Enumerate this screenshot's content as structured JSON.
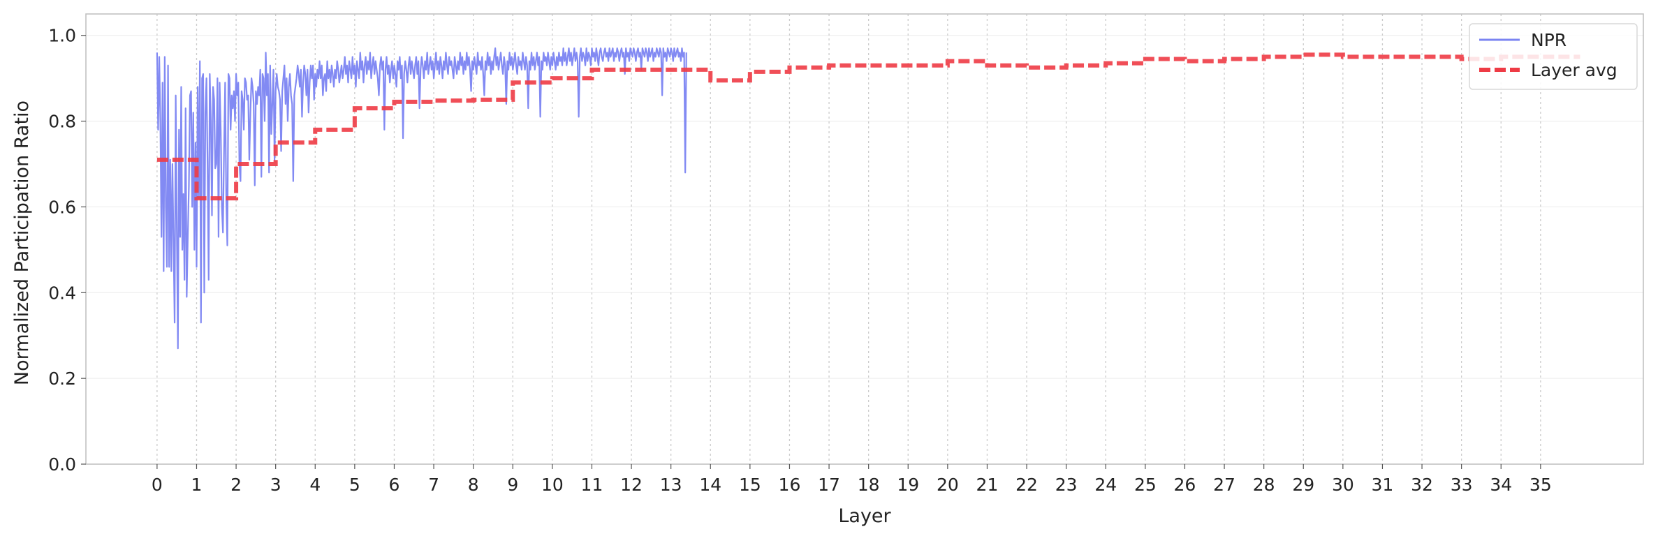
{
  "chart_data": {
    "type": "line",
    "xlabel": "Layer",
    "ylabel": "Normalized Participation Ratio",
    "xlim": [
      -1.8,
      37.6
    ],
    "ylim": [
      0.0,
      1.05
    ],
    "x_ticks": [
      "0",
      "1",
      "2",
      "3",
      "4",
      "5",
      "6",
      "7",
      "8",
      "9",
      "10",
      "11",
      "12",
      "13",
      "14",
      "15",
      "16",
      "17",
      "18",
      "19",
      "20",
      "21",
      "22",
      "23",
      "24",
      "25",
      "26",
      "27",
      "28",
      "29",
      "30",
      "31",
      "32",
      "33",
      "34",
      "35"
    ],
    "y_ticks": [
      "0.0",
      "0.2",
      "0.4",
      "0.6",
      "0.8",
      "1.0"
    ],
    "grid": {
      "vertical_dotted_at_layers": true,
      "horizontal": true
    },
    "legend_position": "top-right",
    "colors": {
      "npr": "#7b84f2",
      "layer_avg": "#ee3b45",
      "grid": "#cccccc",
      "axis": "#bdbdbd"
    },
    "series": [
      {
        "name": "NPR",
        "style": "solid-line",
        "x_step": 0.02778,
        "x_start": 0,
        "values": [
          0.96,
          0.78,
          0.95,
          0.8,
          0.53,
          0.89,
          0.45,
          0.95,
          0.6,
          0.46,
          0.93,
          0.46,
          0.71,
          0.45,
          0.7,
          0.52,
          0.33,
          0.86,
          0.55,
          0.27,
          0.78,
          0.53,
          0.88,
          0.5,
          0.63,
          0.43,
          0.83,
          0.39,
          0.53,
          0.65,
          0.86,
          0.87,
          0.6,
          0.82,
          0.5,
          0.75,
          0.46,
          0.88,
          0.62,
          0.94,
          0.33,
          0.9,
          0.91,
          0.4,
          0.82,
          0.9,
          0.7,
          0.43,
          0.91,
          0.8,
          0.58,
          0.88,
          0.85,
          0.69,
          0.7,
          0.9,
          0.53,
          0.89,
          0.78,
          0.6,
          0.54,
          0.73,
          0.89,
          0.62,
          0.51,
          0.91,
          0.9,
          0.78,
          0.86,
          0.83,
          0.87,
          0.8,
          0.91,
          0.86,
          0.89,
          0.7,
          0.66,
          0.87,
          0.85,
          0.78,
          0.9,
          0.89,
          0.85,
          0.86,
          0.71,
          0.82,
          0.9,
          0.88,
          0.84,
          0.65,
          0.87,
          0.84,
          0.88,
          0.86,
          0.92,
          0.67,
          0.91,
          0.9,
          0.8,
          0.96,
          0.86,
          0.91,
          0.68,
          0.93,
          0.77,
          0.84,
          0.92,
          0.71,
          0.87,
          0.91,
          0.88,
          0.87,
          0.85,
          0.73,
          0.87,
          0.9,
          0.93,
          0.84,
          0.9,
          0.8,
          0.88,
          0.91,
          0.86,
          0.84,
          0.66,
          0.86,
          0.88,
          0.9,
          0.93,
          0.91,
          0.88,
          0.92,
          0.81,
          0.89,
          0.93,
          0.91,
          0.86,
          0.92,
          0.82,
          0.89,
          0.93,
          0.9,
          0.93,
          0.85,
          0.91,
          0.88,
          0.92,
          0.9,
          0.94,
          0.9,
          0.93,
          0.86,
          0.9,
          0.91,
          0.87,
          0.94,
          0.9,
          0.92,
          0.89,
          0.93,
          0.91,
          0.88,
          0.92,
          0.9,
          0.94,
          0.92,
          0.89,
          0.91,
          0.93,
          0.9,
          0.92,
          0.95,
          0.91,
          0.93,
          0.89,
          0.94,
          0.92,
          0.9,
          0.95,
          0.91,
          0.93,
          0.88,
          0.94,
          0.92,
          0.9,
          0.96,
          0.92,
          0.94,
          0.89,
          0.93,
          0.95,
          0.91,
          0.94,
          0.92,
          0.96,
          0.9,
          0.93,
          0.95,
          0.91,
          0.94,
          0.92,
          0.9,
          0.86,
          0.93,
          0.95,
          0.92,
          0.94,
          0.78,
          0.92,
          0.95,
          0.91,
          0.93,
          0.89,
          0.92,
          0.94,
          0.9,
          0.93,
          0.91,
          0.88,
          0.94,
          0.92,
          0.95,
          0.9,
          0.93,
          0.76,
          0.91,
          0.94,
          0.92,
          0.89,
          0.93,
          0.95,
          0.91,
          0.94,
          0.92,
          0.9,
          0.93,
          0.95,
          0.91,
          0.94,
          0.83,
          0.92,
          0.95,
          0.93,
          0.9,
          0.94,
          0.92,
          0.96,
          0.91,
          0.93,
          0.95,
          0.92,
          0.94,
          0.9,
          0.93,
          0.96,
          0.92,
          0.94,
          0.91,
          0.95,
          0.93,
          0.9,
          0.94,
          0.92,
          0.96,
          0.93,
          0.91,
          0.95,
          0.93,
          0.94,
          0.92,
          0.9,
          0.95,
          0.93,
          0.91,
          0.94,
          0.92,
          0.96,
          0.93,
          0.95,
          0.91,
          0.94,
          0.92,
          0.96,
          0.93,
          0.95,
          0.92,
          0.87,
          0.94,
          0.92,
          0.95,
          0.93,
          0.91,
          0.96,
          0.93,
          0.94,
          0.92,
          0.95,
          0.91,
          0.86,
          0.94,
          0.92,
          0.96,
          0.93,
          0.95,
          0.91,
          0.94,
          0.92,
          0.95,
          0.97,
          0.93,
          0.95,
          0.92,
          0.94,
          0.96,
          0.93,
          0.91,
          0.95,
          0.93,
          0.84,
          0.94,
          0.92,
          0.96,
          0.93,
          0.95,
          0.92,
          0.94,
          0.96,
          0.93,
          0.91,
          0.95,
          0.93,
          0.94,
          0.92,
          0.96,
          0.94,
          0.92,
          0.95,
          0.93,
          0.83,
          0.94,
          0.92,
          0.96,
          0.93,
          0.95,
          0.92,
          0.94,
          0.96,
          0.93,
          0.95,
          0.81,
          0.94,
          0.92,
          0.96,
          0.94,
          0.95,
          0.93,
          0.96,
          0.94,
          0.92,
          0.95,
          0.93,
          0.96,
          0.94,
          0.92,
          0.95,
          0.93,
          0.96,
          0.94,
          0.95,
          0.93,
          0.97,
          0.94,
          0.96,
          0.93,
          0.95,
          0.97,
          0.94,
          0.96,
          0.93,
          0.95,
          0.97,
          0.94,
          0.96,
          0.94,
          0.81,
          0.95,
          0.97,
          0.94,
          0.96,
          0.95,
          0.93,
          0.97,
          0.94,
          0.96,
          0.95,
          0.93,
          0.97,
          0.95,
          0.96,
          0.94,
          0.97,
          0.95,
          0.93,
          0.96,
          0.97,
          0.95,
          0.94,
          0.96,
          0.97,
          0.95,
          0.96,
          0.94,
          0.97,
          0.95,
          0.96,
          0.97,
          0.94,
          0.96,
          0.95,
          0.97,
          0.96,
          0.94,
          0.96,
          0.97,
          0.95,
          0.96,
          0.91,
          0.97,
          0.95,
          0.96,
          0.94,
          0.97,
          0.96,
          0.95,
          0.97,
          0.96,
          0.94,
          0.96,
          0.97,
          0.95,
          0.96,
          0.92,
          0.97,
          0.96,
          0.95,
          0.97,
          0.96,
          0.94,
          0.97,
          0.95,
          0.96,
          0.97,
          0.94,
          0.96,
          0.95,
          0.97,
          0.96,
          0.95,
          0.97,
          0.96,
          0.86,
          0.97,
          0.95,
          0.96,
          0.94,
          0.97,
          0.96,
          0.95,
          0.97,
          0.96,
          0.94,
          0.97,
          0.95,
          0.96,
          0.97,
          0.95,
          0.96,
          0.94,
          0.97,
          0.95,
          0.96,
          0.68,
          0.96
        ]
      },
      {
        "name": "Layer avg",
        "style": "dashed-step",
        "layer_values": [
          0.71,
          0.62,
          0.7,
          0.75,
          0.78,
          0.83,
          0.845,
          0.848,
          0.85,
          0.89,
          0.9,
          0.92,
          0.92,
          0.92,
          0.895,
          0.915,
          0.925,
          0.93,
          0.93,
          0.93,
          0.94,
          0.93,
          0.925,
          0.93,
          0.935,
          0.945,
          0.94,
          0.945,
          0.95,
          0.955,
          0.95,
          0.95,
          0.95,
          0.945,
          0.95,
          0.95
        ]
      }
    ]
  }
}
